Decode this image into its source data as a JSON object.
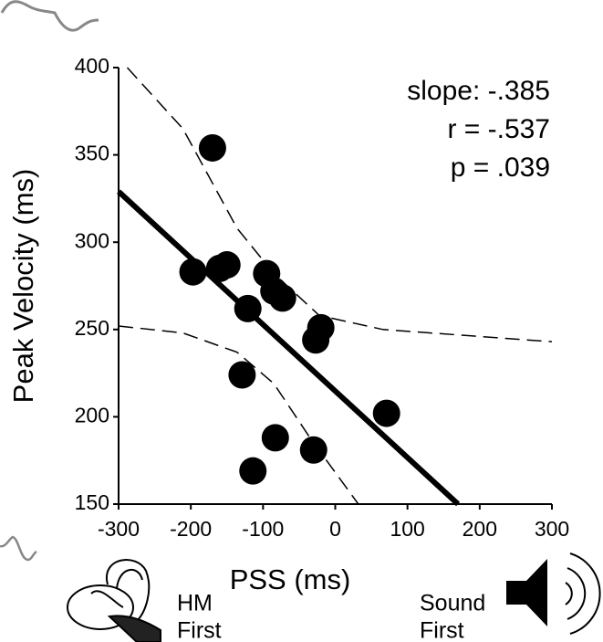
{
  "chart_data": {
    "type": "scatter",
    "xlabel": "PSS (ms)",
    "ylabel": "Peak Velocity (ms)",
    "annotations": [
      "slope: -.385",
      "r = -.537",
      "p = .039"
    ],
    "left_label": [
      "HM",
      "First"
    ],
    "right_label": [
      "Sound",
      "First"
    ],
    "x": [
      -170,
      -197,
      -160,
      -150,
      -121,
      -95,
      -85,
      -73,
      -20,
      -27,
      -129,
      -83,
      -114,
      -30,
      71
    ],
    "values": [
      354,
      283,
      285,
      287,
      262,
      282,
      272,
      268,
      251,
      244,
      224,
      188,
      169,
      181,
      202
    ],
    "color": "#000000",
    "lines": [
      {
        "style": "solid",
        "x": [
          -300,
          170
        ],
        "y": [
          329,
          150
        ]
      },
      {
        "style": "dashed",
        "x": [
          -288,
          -211,
          -136,
          -85,
          -22,
          66,
          300
        ],
        "y": [
          400,
          365,
          308,
          282,
          258,
          250,
          243
        ]
      },
      {
        "style": "dashed",
        "x": [
          -300,
          -211,
          -136,
          -85,
          -35,
          32
        ],
        "y": [
          252,
          248,
          237,
          219,
          188,
          150
        ]
      }
    ],
    "xlim": [
      -300,
      300
    ],
    "xticks": [
      -300,
      -200,
      -100,
      0,
      100,
      200,
      300
    ],
    "ylim": [
      150,
      400
    ],
    "yticks": [
      150,
      200,
      250,
      300,
      350,
      400
    ],
    "grid": false
  }
}
